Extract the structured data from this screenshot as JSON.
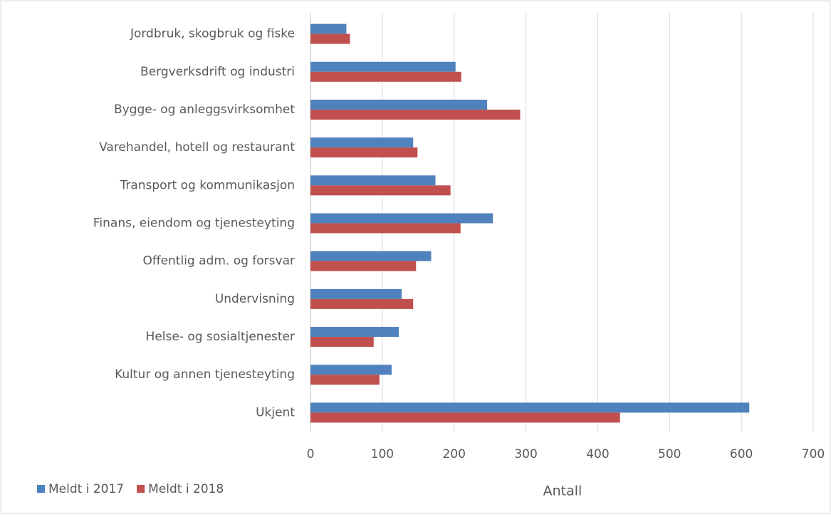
{
  "chart_data": {
    "type": "bar",
    "orientation": "horizontal",
    "categories": [
      "Jordbruk, skogbruk og fiske",
      "Bergverksdrift og industri",
      "Bygge- og anleggsvirksomhet",
      "Varehandel, hotell og restaurant",
      "Transport og kommunikasjon",
      "Finans, eiendom og tjenesteyting",
      "Offentlig adm. og forsvar",
      "Undervisning",
      "Helse- og sosialtjenester",
      "Kultur og annen tjenesteyting",
      "Ukjent"
    ],
    "series": [
      {
        "name": "Meldt i 2017",
        "color": "#4f81bd",
        "values": [
          50,
          202,
          246,
          143,
          174,
          254,
          168,
          127,
          123,
          113,
          611
        ]
      },
      {
        "name": "Meldt i 2018",
        "color": "#c0504d",
        "values": [
          55,
          210,
          292,
          149,
          195,
          209,
          147,
          143,
          88,
          96,
          431
        ]
      }
    ],
    "xlabel": "Antall",
    "xlim": [
      0,
      700
    ],
    "xticks": [
      0,
      100,
      200,
      300,
      400,
      500,
      600,
      700
    ],
    "grid": true,
    "legend": "bottom-left"
  }
}
